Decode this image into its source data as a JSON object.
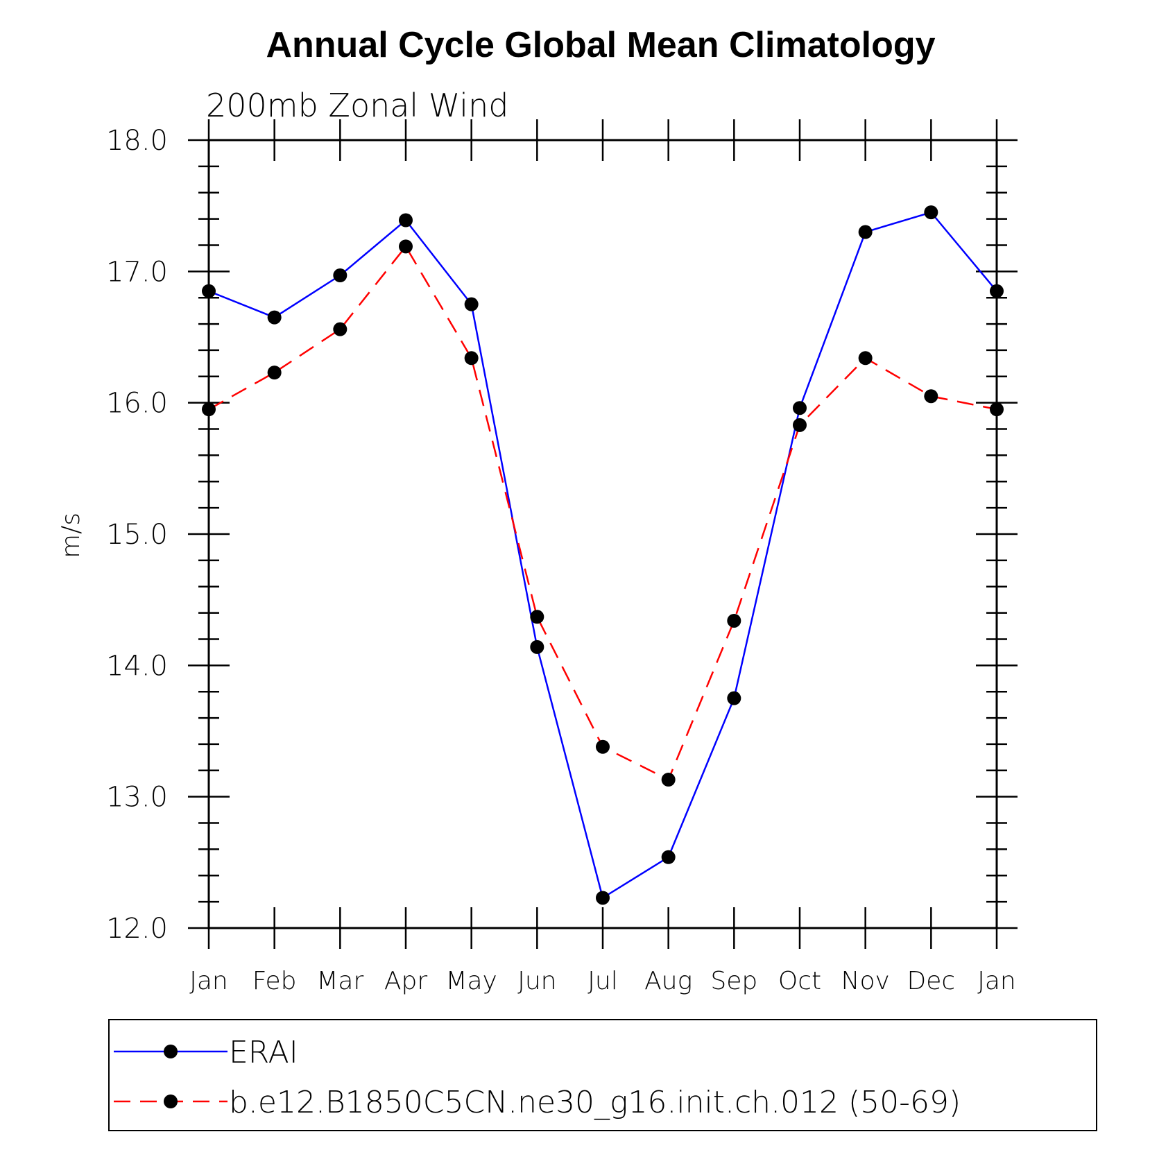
{
  "chart_data": {
    "type": "line",
    "title": "Annual Cycle Global Mean Climatology",
    "subtitle": "200mb  Zonal  Wind",
    "xlabel": "",
    "ylabel": "m/s",
    "categories": [
      "Jan",
      "Feb",
      "Mar",
      "Apr",
      "May",
      "Jun",
      "Jul",
      "Aug",
      "Sep",
      "Oct",
      "Nov",
      "Dec",
      "Jan"
    ],
    "ylim": [
      12.0,
      18.0
    ],
    "yticks": [
      "12.0",
      "13.0",
      "14.0",
      "15.0",
      "16.0",
      "17.0",
      "18.0"
    ],
    "series": [
      {
        "name": "ERAI",
        "color": "#0000ff",
        "style": "solid",
        "marker": "filled-circle",
        "values": [
          16.85,
          16.65,
          16.97,
          17.39,
          16.75,
          14.14,
          12.23,
          12.54,
          13.75,
          15.96,
          17.3,
          17.45,
          16.85
        ]
      },
      {
        "name": "b.e12.B1850C5CN.ne30_g16.init.ch.012 (50-69)",
        "color": "#ff0000",
        "style": "dashed",
        "marker": "filled-circle",
        "values": [
          15.95,
          16.23,
          16.56,
          17.19,
          16.34,
          14.37,
          13.38,
          13.13,
          14.34,
          15.83,
          16.34,
          16.05,
          15.95
        ]
      }
    ],
    "legend_position": "bottom"
  }
}
